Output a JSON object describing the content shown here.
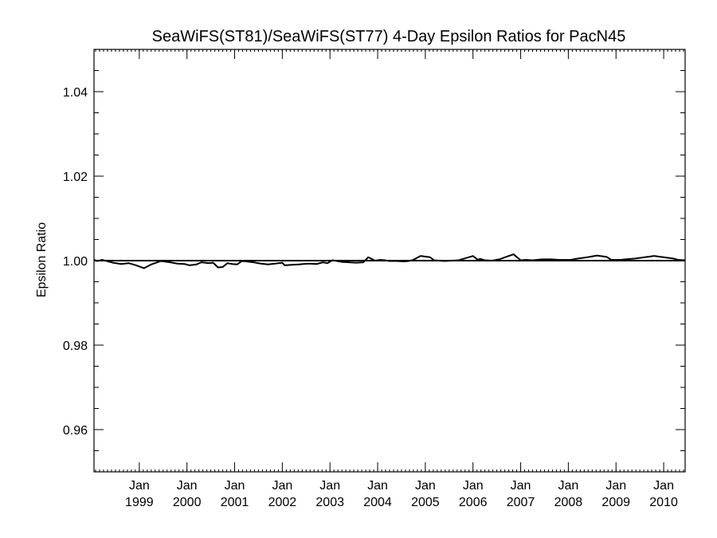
{
  "chart_data": {
    "type": "line",
    "title": "SeaWiFS(ST81)/SeaWiFS(ST77) 4-Day Epsilon Ratios for PacN45",
    "xlabel": "",
    "ylabel": "Epsilon Ratio",
    "xlim": [
      1998.05,
      2010.45
    ],
    "ylim": [
      0.95,
      1.05
    ],
    "x_ticks": [
      {
        "top": "Jan",
        "bottom": "1999",
        "x": 1999.0
      },
      {
        "top": "Jan",
        "bottom": "2000",
        "x": 2000.0
      },
      {
        "top": "Jan",
        "bottom": "2001",
        "x": 2001.0
      },
      {
        "top": "Jan",
        "bottom": "2002",
        "x": 2002.0
      },
      {
        "top": "Jan",
        "bottom": "2003",
        "x": 2003.0
      },
      {
        "top": "Jan",
        "bottom": "2004",
        "x": 2004.0
      },
      {
        "top": "Jan",
        "bottom": "2005",
        "x": 2005.0
      },
      {
        "top": "Jan",
        "bottom": "2006",
        "x": 2006.0
      },
      {
        "top": "Jan",
        "bottom": "2007",
        "x": 2007.0
      },
      {
        "top": "Jan",
        "bottom": "2008",
        "x": 2008.0
      },
      {
        "top": "Jan",
        "bottom": "2009",
        "x": 2009.0
      },
      {
        "top": "Jan",
        "bottom": "2010",
        "x": 2010.0
      }
    ],
    "y_ticks": [
      "0.96",
      "0.98",
      "1.00",
      "1.02",
      "1.04"
    ],
    "reference_line": 1.0,
    "series": [
      {
        "x": [
          1998.05,
          1998.12,
          1998.22,
          1998.45,
          1998.62,
          1998.78,
          1998.93,
          1999.1,
          1999.25,
          1999.45,
          1999.65,
          1999.8,
          1999.95,
          2000.05,
          2000.2,
          2000.3,
          2000.45,
          2000.55,
          2000.65,
          2000.75,
          2000.85,
          2000.95,
          2001.05,
          2001.15,
          2001.25,
          2001.4,
          2001.55,
          2001.7,
          2001.85,
          2002.0,
          2002.05,
          2002.2,
          2002.35,
          2002.55,
          2002.72,
          2002.85,
          2002.95,
          2003.05,
          2003.15,
          2003.25,
          2003.4,
          2003.55,
          2003.7,
          2003.8,
          2003.95,
          2004.05,
          2004.15,
          2004.25,
          2004.4,
          2004.55,
          2004.65,
          2004.75,
          2004.9,
          2005.1,
          2005.18,
          2005.3,
          2005.4,
          2005.55,
          2005.7,
          2005.85,
          2006.0,
          2006.1,
          2006.15,
          2006.25,
          2006.4,
          2006.55,
          2006.7,
          2006.85,
          2007.0,
          2007.1,
          2007.25,
          2007.45,
          2007.65,
          2007.8,
          2007.95,
          2008.05,
          2008.2,
          2008.4,
          2008.6,
          2008.8,
          2008.9,
          2009.1,
          2009.2,
          2009.4,
          2009.6,
          2009.8,
          2010.0,
          2010.2,
          2010.3,
          2010.45
        ],
        "y": [
          1.0002,
          0.9999,
          1.0002,
          0.9995,
          0.9992,
          0.9994,
          0.9989,
          0.9982,
          0.9991,
          0.9999,
          0.9996,
          0.9993,
          0.9992,
          0.9989,
          0.9991,
          0.9996,
          0.9994,
          0.9995,
          0.9984,
          0.9985,
          0.9994,
          0.9992,
          0.9991,
          0.9999,
          0.9998,
          0.9996,
          0.9993,
          0.9991,
          0.9993,
          0.9995,
          0.9989,
          0.999,
          0.9991,
          0.9993,
          0.9992,
          0.9996,
          0.9994,
          1.0001,
          0.9999,
          0.9997,
          0.9996,
          0.9995,
          0.9996,
          1.0008,
          1.0,
          1.0002,
          1.0001,
          0.9999,
          0.9999,
          0.9998,
          0.9999,
          1.0002,
          1.0011,
          1.0008,
          1.0001,
          1.0,
          0.9999,
          1.0,
          1.0001,
          1.0006,
          1.0011,
          1.0002,
          1.0004,
          1.0001,
          1.0,
          1.0003,
          1.0009,
          1.0015,
          1.0001,
          1.0002,
          1.0001,
          1.0003,
          1.0003,
          1.0002,
          1.0002,
          1.0002,
          1.0005,
          1.0008,
          1.0012,
          1.0009,
          1.0002,
          1.0002,
          1.0003,
          1.0005,
          1.0008,
          1.0011,
          1.0008,
          1.0005,
          1.0002,
          1.0001
        ]
      }
    ],
    "line_color": "#000000"
  }
}
